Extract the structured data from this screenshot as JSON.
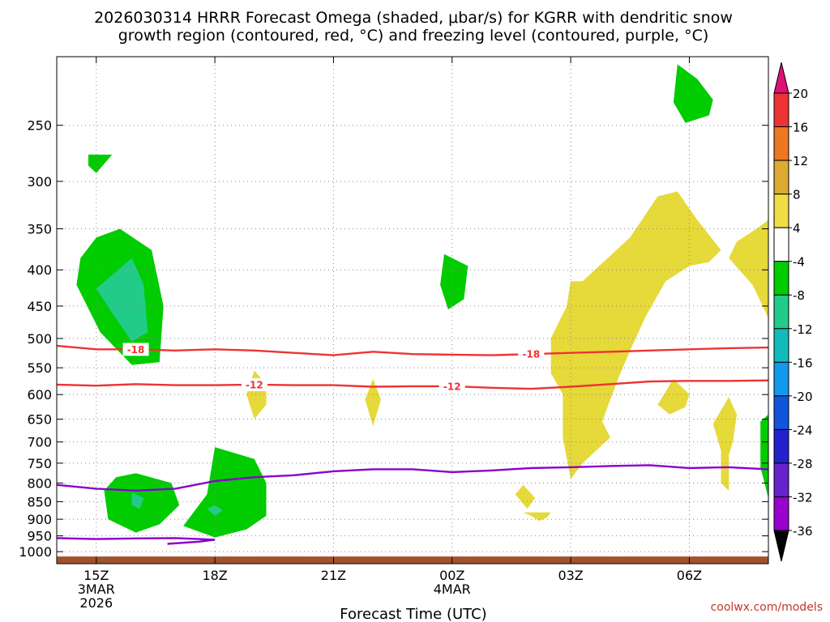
{
  "title": {
    "line1": "2026030314 HRRR Forecast Omega (shaded, μbar/s) for KGRR with dendritic snow",
    "line2": "growth region (contoured, red, °C) and freezing level (contoured, purple, °C)"
  },
  "credit": "coolwx.com/models",
  "colors": {
    "dgz_contour": "#ee3333",
    "freezing_contour": "#8a00cc",
    "ground": "#a0522d",
    "gridline": "#888888"
  },
  "chart_data": {
    "type": "contour",
    "title": "2026030314 HRRR Forecast Omega (shaded, μbar/s) for KGRR with dendritic snow growth region (contoured, red, °C) and freezing level (contoured, purple, °C)",
    "xlabel": "Forecast Time (UTC)",
    "ylabel": "",
    "x_hours_range": [
      14.0,
      32.0
    ],
    "y_log_scale": true,
    "y_range_hpa": [
      1040,
      200
    ],
    "grid": true,
    "x_ticks": [
      {
        "hour": 15,
        "lines": [
          "15Z",
          "3MAR",
          "2026"
        ]
      },
      {
        "hour": 18,
        "lines": [
          "18Z"
        ]
      },
      {
        "hour": 21,
        "lines": [
          "21Z"
        ]
      },
      {
        "hour": 24,
        "lines": [
          "00Z",
          "4MAR"
        ]
      },
      {
        "hour": 27,
        "lines": [
          "03Z"
        ]
      },
      {
        "hour": 30,
        "lines": [
          "06Z"
        ]
      }
    ],
    "y_ticks": [
      250,
      300,
      350,
      400,
      450,
      500,
      550,
      600,
      650,
      700,
      750,
      800,
      850,
      900,
      950,
      1000
    ],
    "colorbar": {
      "labels": [
        "20",
        "16",
        "12",
        "8",
        "4",
        "-4",
        "-8",
        "-12",
        "-16",
        "-20",
        "-24",
        "-28",
        "-32",
        "-36"
      ],
      "colors": [
        "#ee3333",
        "#ee7722",
        "#ddaa33",
        "#eedd44",
        "#ffffff",
        "#00cc00",
        "#22cc88",
        "#11bbbb",
        "#1199ee",
        "#1155dd",
        "#2222cc",
        "#6622cc",
        "#9900cc",
        "#999999"
      ],
      "top_arrow_color": "#dd1177",
      "bottom_arrow_color": "#000000"
    },
    "contours": [
      {
        "name": "-18",
        "kind": "dgz",
        "points": [
          [
            14.0,
            512
          ],
          [
            15.0,
            518
          ],
          [
            16.0,
            518
          ],
          [
            17.0,
            520
          ],
          [
            18.0,
            518
          ],
          [
            19.0,
            520
          ],
          [
            20.0,
            524
          ],
          [
            21.0,
            528
          ],
          [
            22.0,
            522
          ],
          [
            23.0,
            526
          ],
          [
            24.0,
            527
          ],
          [
            25.0,
            528
          ],
          [
            26.0,
            526
          ],
          [
            27.0,
            524
          ],
          [
            28.0,
            522
          ],
          [
            29.0,
            520
          ],
          [
            30.0,
            518
          ],
          [
            31.0,
            516
          ],
          [
            32.0,
            515
          ]
        ],
        "label_hours": [
          16.0,
          26.0
        ]
      },
      {
        "name": "-12",
        "kind": "dgz",
        "points": [
          [
            14.0,
            581
          ],
          [
            15.0,
            583
          ],
          [
            16.0,
            580
          ],
          [
            17.0,
            582
          ],
          [
            18.0,
            582
          ],
          [
            19.0,
            581
          ],
          [
            20.0,
            582
          ],
          [
            21.0,
            582
          ],
          [
            22.0,
            585
          ],
          [
            23.0,
            584
          ],
          [
            24.0,
            584
          ],
          [
            25.0,
            587
          ],
          [
            26.0,
            589
          ],
          [
            27.0,
            585
          ],
          [
            28.0,
            580
          ],
          [
            29.0,
            575
          ],
          [
            30.0,
            574
          ],
          [
            31.0,
            574
          ],
          [
            32.0,
            573
          ]
        ],
        "label_hours": [
          19.0,
          24.0
        ]
      },
      {
        "name": "0",
        "kind": "freezing",
        "points": [
          [
            14.0,
            805
          ],
          [
            15.0,
            815
          ],
          [
            16.0,
            820
          ],
          [
            17.0,
            815
          ],
          [
            18.0,
            795
          ],
          [
            19.0,
            785
          ],
          [
            20.0,
            780
          ],
          [
            21.0,
            770
          ],
          [
            22.0,
            765
          ],
          [
            23.0,
            765
          ],
          [
            24.0,
            772
          ],
          [
            25.0,
            768
          ],
          [
            26.0,
            762
          ],
          [
            27.0,
            760
          ],
          [
            28.0,
            757
          ],
          [
            29.0,
            755
          ],
          [
            30.0,
            762
          ],
          [
            31.0,
            760
          ],
          [
            32.0,
            765
          ]
        ],
        "label_hours": []
      },
      {
        "name": "0",
        "kind": "freezing",
        "points": [
          [
            14.0,
            957
          ],
          [
            15.0,
            960
          ],
          [
            16.0,
            958
          ],
          [
            17.0,
            957
          ],
          [
            18.0,
            962
          ],
          [
            17.6,
            968
          ],
          [
            16.8,
            975
          ]
        ],
        "label_hours": []
      }
    ],
    "regions": [
      {
        "bin": "-4 to -8",
        "points": [
          [
            14.8,
            275
          ],
          [
            15.4,
            275
          ],
          [
            15.0,
            292
          ],
          [
            14.8,
            285
          ]
        ]
      },
      {
        "bin": "-4 to -8",
        "points": [
          [
            15.6,
            350
          ],
          [
            16.4,
            375
          ],
          [
            16.7,
            450
          ],
          [
            16.6,
            540
          ],
          [
            15.9,
            545
          ],
          [
            15.1,
            490
          ],
          [
            14.5,
            420
          ],
          [
            14.6,
            385
          ],
          [
            15.0,
            360
          ]
        ]
      },
      {
        "bin": "-8 to -12",
        "points": [
          [
            15.0,
            425
          ],
          [
            15.9,
            385
          ],
          [
            16.2,
            420
          ],
          [
            16.3,
            490
          ],
          [
            15.9,
            505
          ],
          [
            15.4,
            460
          ]
        ]
      },
      {
        "bin": "-4 to -8",
        "points": [
          [
            16.0,
            775
          ],
          [
            16.9,
            800
          ],
          [
            17.1,
            860
          ],
          [
            16.6,
            915
          ],
          [
            16.0,
            940
          ],
          [
            15.3,
            900
          ],
          [
            15.2,
            820
          ],
          [
            15.5,
            785
          ]
        ]
      },
      {
        "bin": "-8 to -12",
        "points": [
          [
            15.9,
            825
          ],
          [
            16.2,
            840
          ],
          [
            16.1,
            870
          ],
          [
            15.9,
            860
          ]
        ]
      },
      {
        "bin": "-4 to -8",
        "points": [
          [
            18.0,
            712
          ],
          [
            19.0,
            740
          ],
          [
            19.3,
            800
          ],
          [
            19.3,
            890
          ],
          [
            18.8,
            930
          ],
          [
            18.0,
            955
          ],
          [
            17.2,
            920
          ],
          [
            17.8,
            830
          ],
          [
            17.9,
            770
          ]
        ]
      },
      {
        "bin": "-8 to -12",
        "points": [
          [
            18.0,
            860
          ],
          [
            18.2,
            875
          ],
          [
            18.0,
            890
          ],
          [
            17.8,
            870
          ]
        ]
      },
      {
        "bin": "4 to 8",
        "points": [
          [
            19.0,
            555
          ],
          [
            19.3,
            580
          ],
          [
            19.3,
            620
          ],
          [
            19.0,
            650
          ],
          [
            18.8,
            600
          ]
        ]
      },
      {
        "bin": "4 to 8",
        "points": [
          [
            22.0,
            570
          ],
          [
            22.2,
            610
          ],
          [
            22.0,
            665
          ],
          [
            21.8,
            610
          ]
        ]
      },
      {
        "bin": "-4 to -8",
        "points": [
          [
            23.8,
            380
          ],
          [
            24.4,
            395
          ],
          [
            24.3,
            440
          ],
          [
            23.9,
            455
          ],
          [
            23.7,
            420
          ]
        ]
      },
      {
        "bin": "4 to 8",
        "points": [
          [
            27.0,
            415
          ],
          [
            28.0,
            415
          ],
          [
            28.1,
            450
          ],
          [
            28.5,
            460
          ],
          [
            28.5,
            520
          ],
          [
            28.2,
            570
          ],
          [
            28.0,
            610
          ],
          [
            27.8,
            655
          ],
          [
            28.0,
            690
          ],
          [
            27.3,
            750
          ],
          [
            27.0,
            790
          ],
          [
            26.8,
            690
          ],
          [
            26.8,
            600
          ],
          [
            26.5,
            560
          ],
          [
            26.5,
            500
          ],
          [
            26.9,
            450
          ]
        ]
      },
      {
        "bin": "4 to 8",
        "points": [
          [
            27.2,
            420
          ],
          [
            28.5,
            360
          ],
          [
            29.2,
            315
          ],
          [
            29.7,
            310
          ],
          [
            30.2,
            340
          ],
          [
            30.8,
            375
          ],
          [
            30.5,
            390
          ],
          [
            30.0,
            395
          ],
          [
            29.4,
            415
          ],
          [
            28.9,
            465
          ],
          [
            28.5,
            520
          ],
          [
            28.0,
            440
          ]
        ]
      },
      {
        "bin": "4 to 8",
        "points": [
          [
            31.7,
            350
          ],
          [
            32.0,
            340
          ],
          [
            32.0,
            468
          ],
          [
            31.6,
            420
          ],
          [
            31.0,
            385
          ],
          [
            31.2,
            365
          ]
        ]
      },
      {
        "bin": "4 to 8",
        "points": [
          [
            29.6,
            570
          ],
          [
            30.0,
            600
          ],
          [
            29.9,
            625
          ],
          [
            29.5,
            640
          ],
          [
            29.2,
            620
          ]
        ]
      },
      {
        "bin": "4 to 8",
        "points": [
          [
            31.0,
            605
          ],
          [
            31.2,
            640
          ],
          [
            31.1,
            700
          ],
          [
            31.0,
            730
          ],
          [
            31.0,
            820
          ],
          [
            30.8,
            800
          ],
          [
            30.8,
            720
          ],
          [
            30.6,
            660
          ]
        ]
      },
      {
        "bin": "4 to 8",
        "points": [
          [
            25.8,
            805
          ],
          [
            26.1,
            840
          ],
          [
            25.9,
            870
          ],
          [
            25.6,
            830
          ]
        ]
      },
      {
        "bin": "4 to 8",
        "points": [
          [
            25.8,
            880
          ],
          [
            26.5,
            880
          ],
          [
            26.4,
            895
          ],
          [
            26.2,
            905
          ],
          [
            26.0,
            890
          ]
        ]
      },
      {
        "bin": "-4 to -8",
        "points": [
          [
            29.7,
            205
          ],
          [
            30.2,
            215
          ],
          [
            30.6,
            230
          ],
          [
            30.5,
            242
          ],
          [
            29.9,
            248
          ],
          [
            29.6,
            232
          ]
        ]
      },
      {
        "bin": "-4 to -8",
        "points": [
          [
            31.8,
            655
          ],
          [
            32.0,
            640
          ],
          [
            32.0,
            840
          ],
          [
            31.8,
            760
          ]
        ]
      }
    ],
    "ground": {
      "top_hpa": 1000
    }
  }
}
